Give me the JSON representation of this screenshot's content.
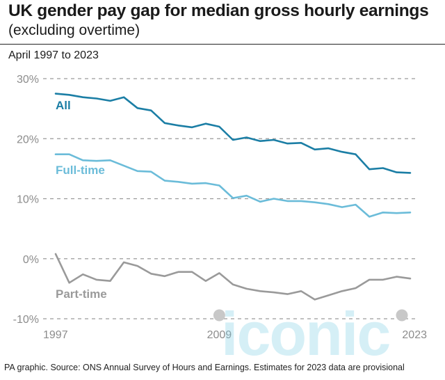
{
  "header": {
    "title": "UK gender pay gap for median gross hourly earnings",
    "subtitle": "(excluding overtime)",
    "period": "April 1997 to 2023"
  },
  "footer": "PA graphic. Source: ONS Annual Survey of Hours and Earnings. Estimates for 2023 data are provisional",
  "watermark": "iconic",
  "colors": {
    "all": "#1b7ea5",
    "full_time": "#6bbcd9",
    "part_time": "#9a9a9a",
    "grid": "#9a9a9a",
    "tick_text": "#8c8c8c"
  },
  "chart_data": {
    "type": "line",
    "x": [
      1997,
      1998,
      1999,
      2000,
      2001,
      2002,
      2003,
      2004,
      2005,
      2006,
      2007,
      2008,
      2009,
      2010,
      2011,
      2012,
      2013,
      2014,
      2015,
      2016,
      2017,
      2018,
      2019,
      2020,
      2021,
      2022,
      2023
    ],
    "series": [
      {
        "name": "All",
        "values": [
          27.5,
          27.3,
          26.9,
          26.7,
          26.3,
          26.9,
          25.1,
          24.7,
          22.6,
          22.2,
          21.9,
          22.5,
          22.0,
          19.8,
          20.2,
          19.6,
          19.8,
          19.2,
          19.3,
          18.2,
          18.4,
          17.8,
          17.4,
          14.9,
          15.1,
          14.4,
          14.3
        ]
      },
      {
        "name": "Full-time",
        "values": [
          17.4,
          17.4,
          16.4,
          16.3,
          16.4,
          15.5,
          14.6,
          14.5,
          13.0,
          12.8,
          12.5,
          12.6,
          12.2,
          10.1,
          10.5,
          9.5,
          10.0,
          9.6,
          9.6,
          9.4,
          9.1,
          8.6,
          9.0,
          7.0,
          7.7,
          7.6,
          7.7
        ]
      },
      {
        "name": "Part-time",
        "values": [
          0.8,
          -4.0,
          -2.6,
          -3.5,
          -3.7,
          -0.6,
          -1.2,
          -2.5,
          -2.9,
          -2.2,
          -2.2,
          -3.7,
          -2.4,
          -4.3,
          -5.0,
          -5.4,
          -5.6,
          -5.9,
          -5.4,
          -6.8,
          -6.1,
          -5.4,
          -4.9,
          -3.5,
          -3.5,
          -3.0,
          -3.3
        ]
      }
    ],
    "ylim": [
      -10,
      30
    ],
    "yticks": [
      "30%",
      "20%",
      "10%",
      "0%",
      "-10%"
    ],
    "ytick_values": [
      30,
      20,
      10,
      0,
      -10
    ],
    "xtick_labels": [
      "1997",
      "2009",
      "2023"
    ],
    "xtick_values": [
      1997,
      2009,
      2023
    ],
    "grid": true,
    "legend": "inline labels"
  }
}
